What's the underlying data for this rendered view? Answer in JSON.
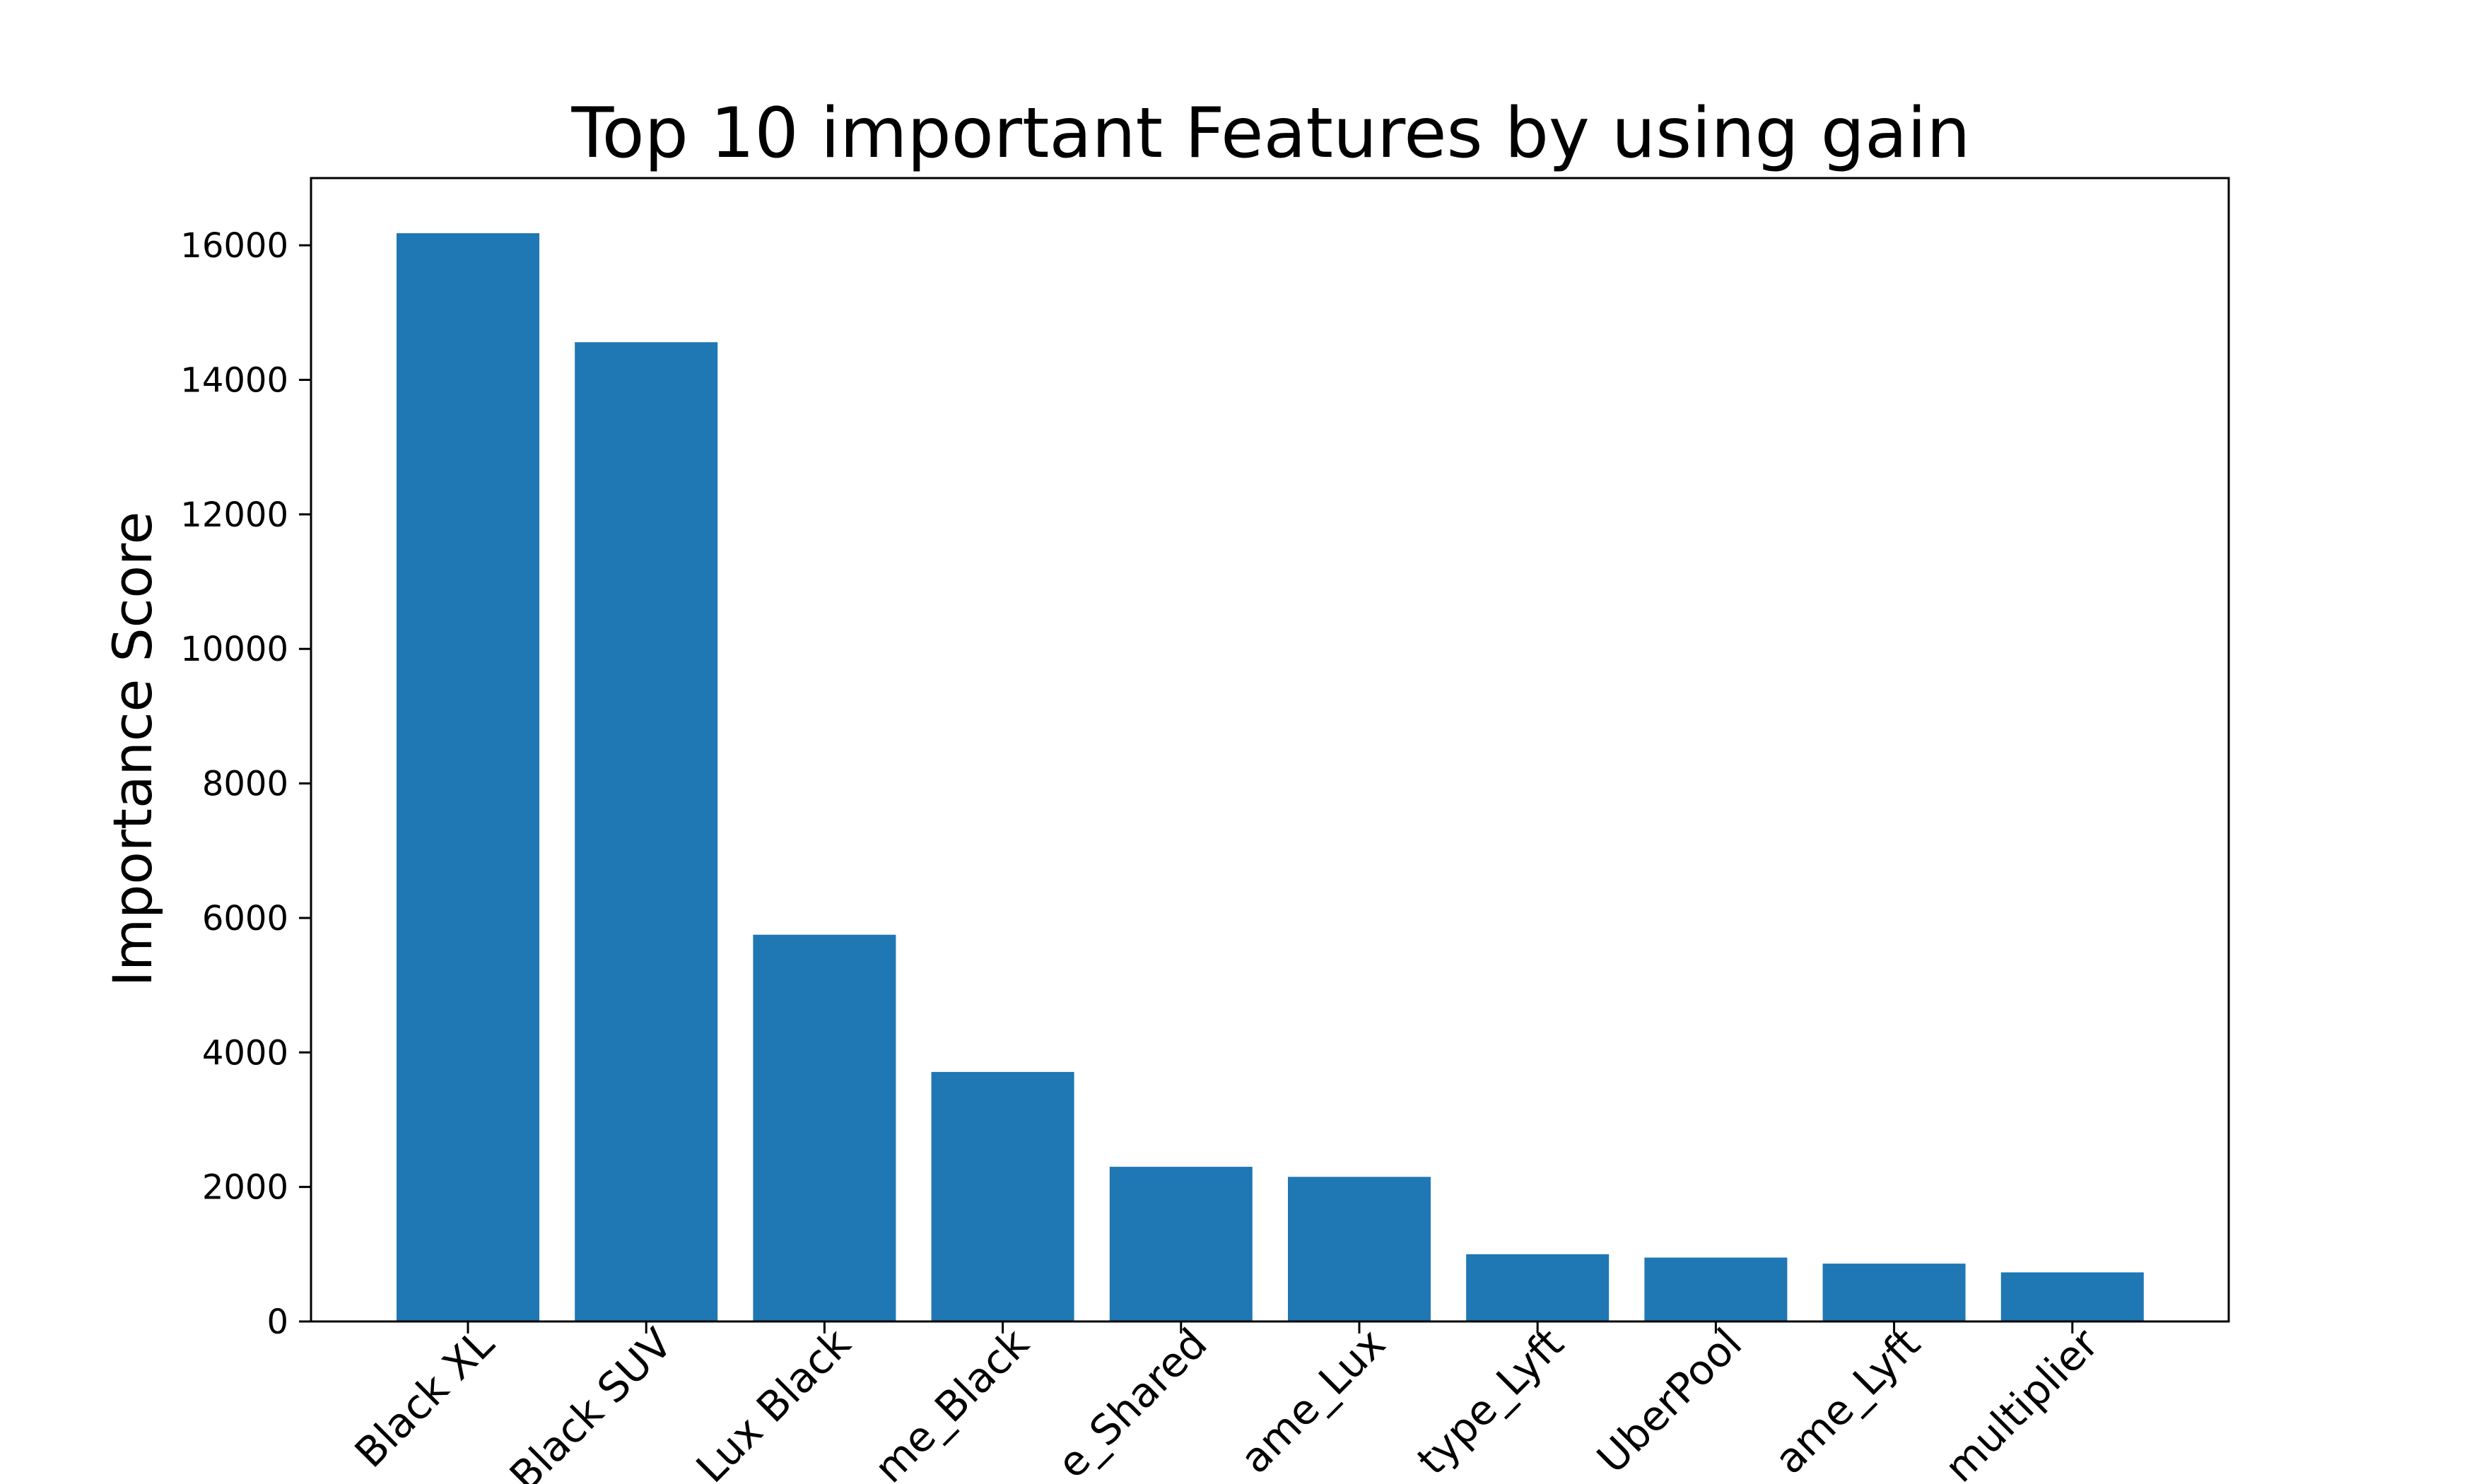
{
  "chart_data": {
    "type": "bar",
    "title": "Top 10 important Features by using gain",
    "xlabel": "",
    "ylabel": "Importance Score",
    "categories": [
      "name_Black XL",
      "name_Black SUV",
      "name_Lux Black",
      "name_Black",
      "name_Shared",
      "name_Lux",
      "cab_type_Lyft",
      "name_UberPool",
      "name_Lyft",
      "surge_multiplier"
    ],
    "tick_labels": [
      "Black XL",
      "Black SUV",
      "Lux Black",
      "me_Black",
      "e_Shared",
      "ame_Lux",
      "type_Lyft",
      "UberPool",
      "ame_Lyft",
      "multiplier"
    ],
    "values": [
      16180,
      14560,
      5750,
      3710,
      2300,
      2150,
      1000,
      950,
      860,
      730
    ],
    "ylim": [
      0,
      17000
    ],
    "yticks": [
      0,
      2000,
      4000,
      6000,
      8000,
      10000,
      12000,
      14000,
      16000
    ],
    "grid": false,
    "legend": "none",
    "bar_color": "#1f77b4"
  }
}
